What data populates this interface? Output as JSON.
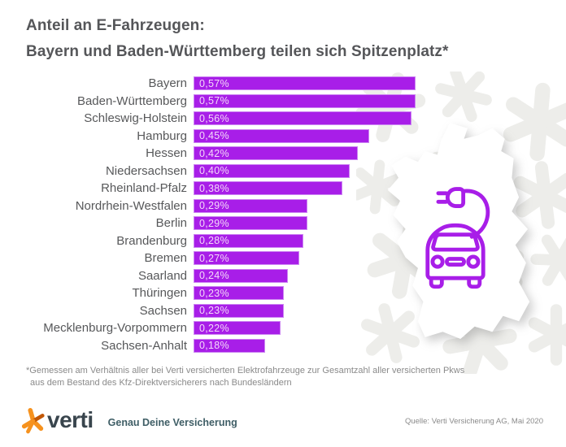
{
  "header": {
    "title_line1": "Anteil an E-Fahrzeugen:",
    "title_line2": "Bayern und Baden-Württemberg teilen sich Spitzenplatz*"
  },
  "chart_data": {
    "type": "bar",
    "orientation": "horizontal",
    "title": "Anteil an E-Fahrzeugen: Bayern und Baden-Württemberg teilen sich Spitzenplatz*",
    "categories": [
      "Bayern",
      "Baden-Württemberg",
      "Schleswig-Holstein",
      "Hamburg",
      "Hessen",
      "Niedersachsen",
      "Rheinland-Pfalz",
      "Nordrhein-Westfalen",
      "Berlin",
      "Brandenburg",
      "Bremen",
      "Saarland",
      "Thüringen",
      "Sachsen",
      "Mecklenburg-Vorpommern",
      "Sachsen-Anhalt"
    ],
    "values": [
      0.57,
      0.57,
      0.56,
      0.45,
      0.42,
      0.4,
      0.38,
      0.29,
      0.29,
      0.28,
      0.27,
      0.24,
      0.23,
      0.23,
      0.22,
      0.18
    ],
    "value_labels": [
      "0,57%",
      "0,57%",
      "0,56%",
      "0,45%",
      "0,42%",
      "0,40%",
      "0,38%",
      "0,29%",
      "0,29%",
      "0,28%",
      "0,27%",
      "0,24%",
      "0,23%",
      "0,23%",
      "0,22%",
      "0,18%"
    ],
    "unit": "%",
    "xlim": [
      0,
      0.6
    ],
    "grid": false,
    "legend": "none",
    "bar_color": "#a81ee8",
    "bar_border_color": "#cc85f2",
    "value_text_color": "#f4d8fa"
  },
  "footnote": {
    "line1": "*Gemessen am Verhältnis aller bei Verti versicherten Elektrofahrzeuge zur Gesamtzahl aller versicherten Pkws",
    "line2": "aus dem Bestand des Kfz-Direktversicherers nach Bundesländern"
  },
  "footer": {
    "logo_text": "verti",
    "tagline": "Genau Deine Versicherung",
    "source": "Quelle: Verti Versicherung AG, Mai 2020"
  },
  "decor": {
    "map_icon": "germany-map-silhouette",
    "car_icon": "electric-car-charging-plug-icon",
    "pattern_icon": "verti-star-pattern",
    "colors": {
      "accent_purple": "#a81ee8",
      "logo_orange": "#f6921e",
      "logo_slate": "#39454d",
      "tagline_teal": "#3f5e66",
      "pattern_gray": "#ededea",
      "text_gray": "#57585a"
    }
  }
}
